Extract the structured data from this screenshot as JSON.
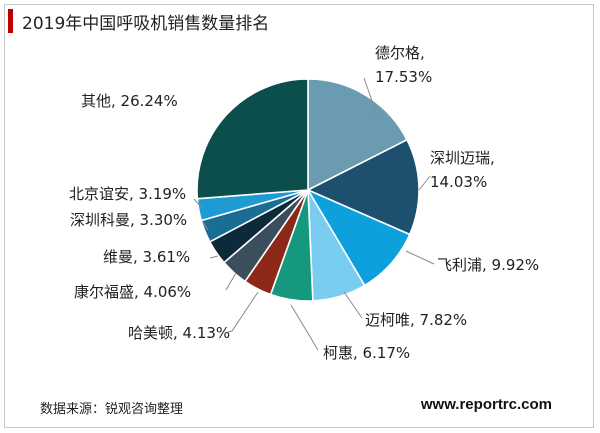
{
  "title": "2019年中国呼吸机销售数量排名",
  "source": "数据来源：锐观咨询整理",
  "website": "www.reportrc.com",
  "accent_color": "#c00000",
  "chart_data": {
    "type": "pie",
    "title": "2019年中国呼吸机销售数量排名",
    "unit": "%",
    "slices": [
      {
        "label": "德尔格",
        "value": 17.53,
        "display": "17.53%",
        "color": "#6a9bb0"
      },
      {
        "label": "深圳迈瑞",
        "value": 14.03,
        "display": "14.03%",
        "color": "#1d4f6e"
      },
      {
        "label": "飞利浦",
        "value": 9.92,
        "display": "9.92%",
        "color": "#0ea0dd"
      },
      {
        "label": "迈柯唯",
        "value": 7.82,
        "display": "7.82%",
        "color": "#79cdf0"
      },
      {
        "label": "柯惠",
        "value": 6.17,
        "display": "6.17%",
        "color": "#15997e"
      },
      {
        "label": "哈美顿",
        "value": 4.13,
        "display": "4.13%",
        "color": "#8c2817"
      },
      {
        "label": "康尔福盛",
        "value": 4.06,
        "display": "4.06%",
        "color": "#3a4f5b"
      },
      {
        "label": "维曼",
        "value": 3.61,
        "display": "3.61%",
        "color": "#0d2a3a"
      },
      {
        "label": "深圳科曼",
        "value": 3.3,
        "display": "3.30%",
        "color": "#1a6e93"
      },
      {
        "label": "北京谊安",
        "value": 3.19,
        "display": "3.19%",
        "color": "#1f9bd3"
      },
      {
        "label": "其他",
        "value": 26.24,
        "display": "26.24%",
        "color": "#0c4e4c"
      }
    ]
  }
}
